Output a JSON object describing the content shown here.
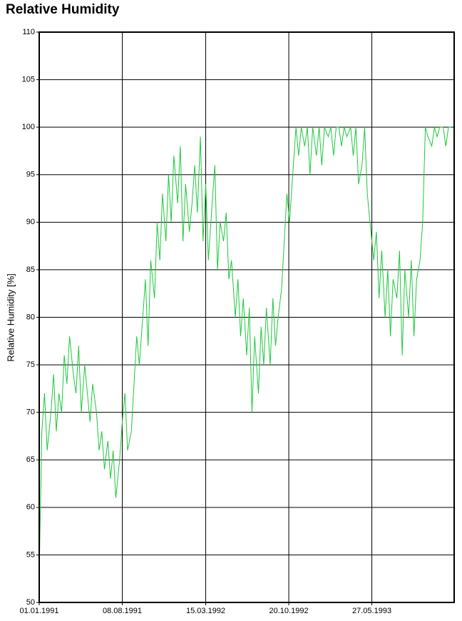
{
  "chart_data": {
    "type": "line",
    "title": "Relative Humidity",
    "y_label": "Relative Humidity [%]",
    "x": [
      "01.01.1991",
      "08.01.1991",
      "15.01.1991",
      "22.01.1991",
      "01.02.1991",
      "08.02.1991",
      "15.02.1991",
      "22.02.1991",
      "01.03.1991",
      "08.03.1991",
      "15.03.1991",
      "22.03.1991",
      "01.04.1991",
      "08.04.1991",
      "15.04.1991",
      "22.04.1991",
      "01.05.1991",
      "08.05.1991",
      "15.05.1991",
      "22.05.1991",
      "01.06.1991",
      "08.06.1991",
      "15.06.1991",
      "22.06.1991",
      "01.07.1991",
      "08.07.1991",
      "15.07.1991",
      "22.07.1991",
      "01.08.1991",
      "08.08.1991",
      "15.08.1991",
      "22.08.1991",
      "01.09.1991",
      "08.09.1991",
      "15.09.1991",
      "22.09.1991",
      "01.10.1991",
      "08.10.1991",
      "15.10.1991",
      "22.10.1991",
      "01.11.1991",
      "08.11.1991",
      "15.11.1991",
      "22.11.1991",
      "01.12.1991",
      "08.12.1991",
      "15.12.1991",
      "22.12.1991",
      "01.01.1992",
      "08.01.1992",
      "15.01.1992",
      "22.01.1992",
      "01.02.1992",
      "08.02.1992",
      "15.02.1992",
      "22.02.1992",
      "01.03.1992",
      "08.03.1992",
      "15.03.1992",
      "22.03.1992",
      "01.04.1992",
      "08.04.1992",
      "15.04.1992",
      "22.04.1992",
      "01.05.1992",
      "08.05.1992",
      "15.05.1992",
      "22.05.1992",
      "01.06.1992",
      "08.06.1992",
      "15.06.1992",
      "22.06.1992",
      "01.07.1992",
      "08.07.1992",
      "15.07.1992",
      "22.07.1992",
      "01.08.1992",
      "08.08.1992",
      "15.08.1992",
      "22.08.1992",
      "01.09.1992",
      "08.09.1992",
      "15.09.1992",
      "22.09.1992",
      "01.10.1992",
      "08.10.1992",
      "15.10.1992",
      "22.10.1992",
      "01.11.1992",
      "08.11.1992",
      "15.11.1992",
      "22.11.1992",
      "01.12.1992",
      "08.12.1992",
      "15.12.1992",
      "22.12.1992",
      "01.01.1993",
      "08.01.1993",
      "15.01.1993",
      "22.01.1993",
      "01.02.1993",
      "08.02.1993",
      "15.02.1993",
      "22.02.1993",
      "01.03.1993",
      "08.03.1993",
      "15.03.1993",
      "22.03.1993",
      "01.04.1993",
      "08.04.1993",
      "15.04.1993",
      "22.04.1993",
      "01.05.1993",
      "08.05.1993",
      "15.05.1993",
      "22.05.1993",
      "01.06.1993",
      "08.06.1993",
      "15.06.1993",
      "22.06.1993",
      "01.07.1993",
      "08.07.1993",
      "15.07.1993",
      "22.07.1993",
      "01.08.1993",
      "08.08.1993",
      "15.08.1993",
      "22.08.1993",
      "01.09.1993",
      "08.09.1993",
      "15.09.1993",
      "22.09.1993",
      "01.10.1993",
      "08.10.1993",
      "15.10.1993",
      "22.10.1993",
      "01.11.1993",
      "08.11.1993",
      "15.11.1993",
      "22.11.1993",
      "01.12.1993",
      "08.12.1993",
      "15.12.1993",
      "22.12.1993"
    ],
    "series": [
      {
        "name": "Relative Humidity",
        "color": "#1ec83c",
        "values": [
          53,
          68,
          72,
          66,
          70,
          74,
          68,
          72,
          70,
          76,
          73,
          78,
          74,
          72,
          77,
          70,
          75,
          72,
          69,
          73,
          70,
          66,
          68,
          64,
          67,
          63,
          66,
          61,
          65,
          69,
          72,
          66,
          68,
          73,
          78,
          75,
          80,
          84,
          77,
          86,
          82,
          90,
          86,
          93,
          88,
          95,
          90,
          97,
          92,
          98,
          88,
          94,
          89,
          92,
          96,
          91,
          99,
          88,
          94,
          86,
          92,
          96,
          85,
          90,
          88,
          91,
          84,
          86,
          80,
          84,
          78,
          82,
          76,
          81,
          70,
          78,
          72,
          79,
          75,
          81,
          75,
          82,
          77,
          80,
          83,
          88,
          93,
          90,
          96,
          100,
          97,
          100,
          98,
          100,
          95,
          100,
          97,
          100,
          96,
          100,
          99,
          100,
          97,
          100,
          100,
          98,
          100,
          99,
          100,
          97,
          100,
          94,
          96,
          100,
          93,
          90,
          86,
          89,
          82,
          87,
          80,
          85,
          78,
          84,
          82,
          87,
          76,
          85,
          80,
          86,
          78,
          84,
          86,
          90,
          100,
          99,
          98,
          100,
          99,
          100,
          100,
          98,
          100,
          100
        ]
      }
    ],
    "xlim": [
      "01.01.1991",
      "30.12.1993"
    ],
    "xticks": [
      "01.01.1991",
      "08.08.1991",
      "15.03.1992",
      "20.10.1992",
      "27.05.1993"
    ],
    "ylim": [
      50,
      110
    ],
    "yticks": [
      50,
      55,
      60,
      65,
      70,
      75,
      80,
      85,
      90,
      95,
      100,
      105,
      110
    ],
    "grid": true
  }
}
